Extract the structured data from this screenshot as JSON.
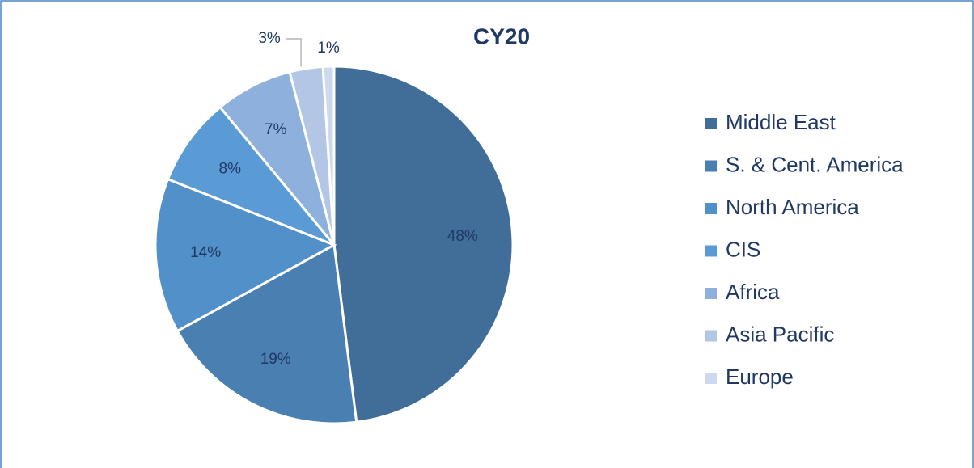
{
  "chart_data": {
    "type": "pie",
    "title": "CY20",
    "categories": [
      "Middle East",
      "S. & Cent. America",
      "North America",
      "CIS",
      "Africa",
      "Asia Pacific",
      "Europe"
    ],
    "values": [
      48,
      19,
      14,
      8,
      7,
      3,
      1
    ],
    "value_labels": [
      "48%",
      "19%",
      "14%",
      "8%",
      "7%",
      "3%",
      "1%"
    ],
    "colors": [
      "#416e98",
      "#4a7fb1",
      "#5190c8",
      "#5b9bd5",
      "#8db0dc",
      "#b3c6e6",
      "#cdd9ee"
    ],
    "legend": "right"
  }
}
